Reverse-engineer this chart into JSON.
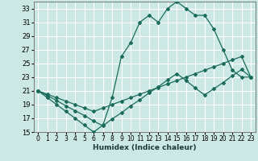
{
  "title": "",
  "xlabel": "Humidex (Indice chaleur)",
  "xlim": [
    -0.5,
    23.5
  ],
  "ylim": [
    15,
    34
  ],
  "xticks": [
    0,
    1,
    2,
    3,
    4,
    5,
    6,
    7,
    8,
    9,
    10,
    11,
    12,
    13,
    14,
    15,
    16,
    17,
    18,
    19,
    20,
    21,
    22,
    23
  ],
  "yticks": [
    15,
    17,
    19,
    21,
    23,
    25,
    27,
    29,
    31,
    33
  ],
  "line_color": "#1a6b5a",
  "bg_color": "#cce8e4",
  "grid_color": "#ffffff",
  "line1_x": [
    0,
    1,
    2,
    3,
    4,
    5,
    6,
    7,
    8,
    9,
    10,
    11,
    12,
    13,
    14,
    15,
    16,
    17,
    18,
    19,
    20,
    21,
    22,
    23
  ],
  "line1_y": [
    21.0,
    20.3,
    19.6,
    18.8,
    18.1,
    17.4,
    16.6,
    15.9,
    16.9,
    17.8,
    18.8,
    19.7,
    20.7,
    21.6,
    22.6,
    23.5,
    22.5,
    21.4,
    20.4,
    21.3,
    22.2,
    23.2,
    24.1,
    23.0
  ],
  "line2_x": [
    0,
    1,
    2,
    3,
    4,
    5,
    6,
    7,
    8,
    9,
    10,
    11,
    12,
    13,
    14,
    15,
    16,
    17,
    18,
    19,
    20,
    21,
    22,
    23
  ],
  "line2_y": [
    21,
    20,
    19,
    18,
    17,
    16,
    15,
    16,
    20,
    26,
    28,
    31,
    32,
    31,
    33,
    34,
    33,
    32,
    32,
    30,
    27,
    24,
    23,
    23
  ],
  "line3_x": [
    0,
    1,
    2,
    3,
    4,
    5,
    6,
    7,
    8,
    9,
    10,
    11,
    12,
    13,
    14,
    15,
    16,
    17,
    18,
    19,
    20,
    21,
    22,
    23
  ],
  "line3_y": [
    21,
    20.5,
    20,
    19.5,
    19,
    18.5,
    18,
    18.5,
    19,
    19.5,
    20,
    20.5,
    21,
    21.5,
    22,
    22.5,
    23,
    23.5,
    24,
    24.5,
    25,
    25.5,
    26,
    23
  ],
  "marker": "D",
  "markersize": 2,
  "linewidth": 0.9
}
